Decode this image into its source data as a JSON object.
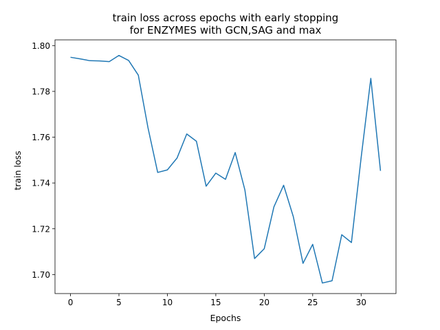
{
  "chart_data": {
    "type": "line",
    "title": "train loss across epochs with early stopping",
    "subtitle": "for ENZYMES with GCN,SAG and max",
    "xlabel": "Epochs",
    "ylabel": "train loss",
    "xlim": [
      -1.6,
      33.6
    ],
    "ylim": [
      1.6917,
      1.8025
    ],
    "xticks": [
      0,
      5,
      10,
      15,
      20,
      25,
      30
    ],
    "yticks": [
      1.7,
      1.72,
      1.74,
      1.76,
      1.78,
      1.8
    ],
    "ytick_labels": [
      "1.70",
      "1.72",
      "1.74",
      "1.76",
      "1.78",
      "1.80"
    ],
    "grid": false,
    "line_color": "#1f77b4",
    "series": [
      {
        "x": [
          0,
          1,
          2,
          3,
          4,
          5,
          6,
          7,
          8,
          9,
          10,
          11,
          12,
          13,
          14,
          15,
          16,
          17,
          18,
          19,
          20,
          21,
          22,
          23,
          24,
          25,
          26,
          27,
          28,
          29,
          30,
          31,
          32
        ],
        "values": [
          1.7949,
          1.7942,
          1.7934,
          1.7933,
          1.793,
          1.7957,
          1.7935,
          1.7871,
          1.7641,
          1.7446,
          1.7457,
          1.7509,
          1.7614,
          1.7582,
          1.7386,
          1.7443,
          1.7416,
          1.7533,
          1.737,
          1.707,
          1.7113,
          1.7296,
          1.739,
          1.7253,
          1.7049,
          1.7132,
          1.6963,
          1.6973,
          1.7174,
          1.714,
          1.751,
          1.7857,
          1.7453
        ]
      }
    ]
  }
}
